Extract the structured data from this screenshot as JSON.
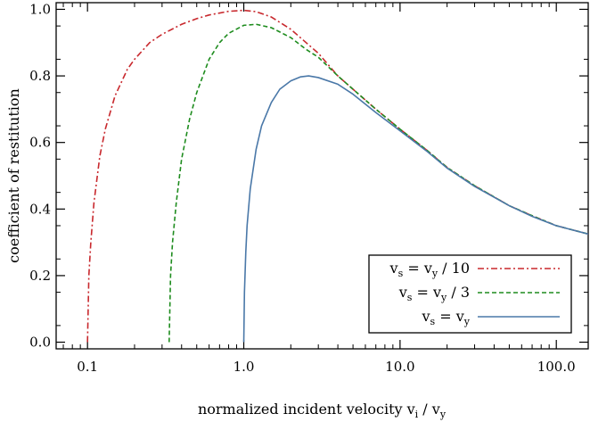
{
  "chart_data": {
    "type": "line",
    "xlabel": {
      "prefix": "normalized incident velocity v",
      "sub1": "i",
      "mid": " / v",
      "sub2": "y"
    },
    "ylabel": "coefficient of restitution",
    "x_scale": "log",
    "xlim": [
      0.063,
      160
    ],
    "ylim": [
      -0.02,
      1.02
    ],
    "x_ticks": [
      {
        "value": 0.1,
        "label": "0.1"
      },
      {
        "value": 1,
        "label": "1.0"
      },
      {
        "value": 10,
        "label": "10.0"
      },
      {
        "value": 100,
        "label": "100.0"
      }
    ],
    "y_ticks": [
      {
        "value": 0.0,
        "label": "0.0"
      },
      {
        "value": 0.2,
        "label": "0.2"
      },
      {
        "value": 0.4,
        "label": "0.4"
      },
      {
        "value": 0.6,
        "label": "0.6"
      },
      {
        "value": 0.8,
        "label": "0.8"
      },
      {
        "value": 1.0,
        "label": "1.0"
      }
    ],
    "legend_position": "bottom-right",
    "grid": false,
    "series": [
      {
        "name": "v_s = v_y / 10",
        "legend": {
          "a": "v",
          "b": "s",
          "c": " = v",
          "d": "y",
          "e": " / 10"
        },
        "color": "#c8282d",
        "dash": "7,3,2,3",
        "x": [
          0.1,
          0.102,
          0.105,
          0.11,
          0.12,
          0.13,
          0.15,
          0.18,
          0.2,
          0.25,
          0.3,
          0.4,
          0.5,
          0.6,
          0.8,
          1.0,
          1.2,
          1.5,
          2.0,
          3.0,
          4.0,
          5.0,
          7.0,
          10,
          15,
          20,
          30,
          50,
          70,
          100,
          160
        ],
        "y": [
          0.0,
          0.2,
          0.3,
          0.42,
          0.56,
          0.64,
          0.74,
          0.82,
          0.85,
          0.9,
          0.925,
          0.955,
          0.972,
          0.983,
          0.994,
          0.997,
          0.993,
          0.977,
          0.94,
          0.868,
          0.8,
          0.76,
          0.7,
          0.64,
          0.575,
          0.525,
          0.47,
          0.41,
          0.38,
          0.35,
          0.325
        ]
      },
      {
        "name": "v_s = v_y / 3",
        "legend": {
          "a": "v",
          "b": "s",
          "c": " = v",
          "d": "y",
          "e": " / 3"
        },
        "color": "#1e8c1e",
        "dash": "5,3",
        "x": [
          0.333,
          0.34,
          0.35,
          0.37,
          0.4,
          0.45,
          0.5,
          0.6,
          0.7,
          0.8,
          1.0,
          1.2,
          1.5,
          2.0,
          2.5,
          3.0,
          4.0,
          5.0,
          7.0,
          10,
          15,
          20,
          30,
          50,
          70,
          100,
          160
        ],
        "y": [
          0.0,
          0.2,
          0.3,
          0.42,
          0.55,
          0.67,
          0.75,
          0.85,
          0.9,
          0.928,
          0.952,
          0.955,
          0.945,
          0.915,
          0.88,
          0.856,
          0.8,
          0.76,
          0.7,
          0.64,
          0.575,
          0.525,
          0.47,
          0.41,
          0.38,
          0.35,
          0.325
        ]
      },
      {
        "name": "v_s = v_y",
        "legend": {
          "a": "v",
          "b": "s",
          "c": " = v",
          "d": "y",
          "e": ""
        },
        "color": "#4a78a8",
        "dash": "",
        "x": [
          1.0,
          1.01,
          1.03,
          1.05,
          1.1,
          1.2,
          1.3,
          1.5,
          1.7,
          2.0,
          2.3,
          2.6,
          3.0,
          4.0,
          5.0,
          7.0,
          10,
          15,
          20,
          30,
          50,
          70,
          100,
          160
        ],
        "y": [
          0.0,
          0.15,
          0.27,
          0.35,
          0.46,
          0.58,
          0.65,
          0.72,
          0.76,
          0.785,
          0.797,
          0.8,
          0.795,
          0.775,
          0.745,
          0.69,
          0.635,
          0.572,
          0.523,
          0.468,
          0.41,
          0.378,
          0.35,
          0.325
        ]
      }
    ]
  }
}
